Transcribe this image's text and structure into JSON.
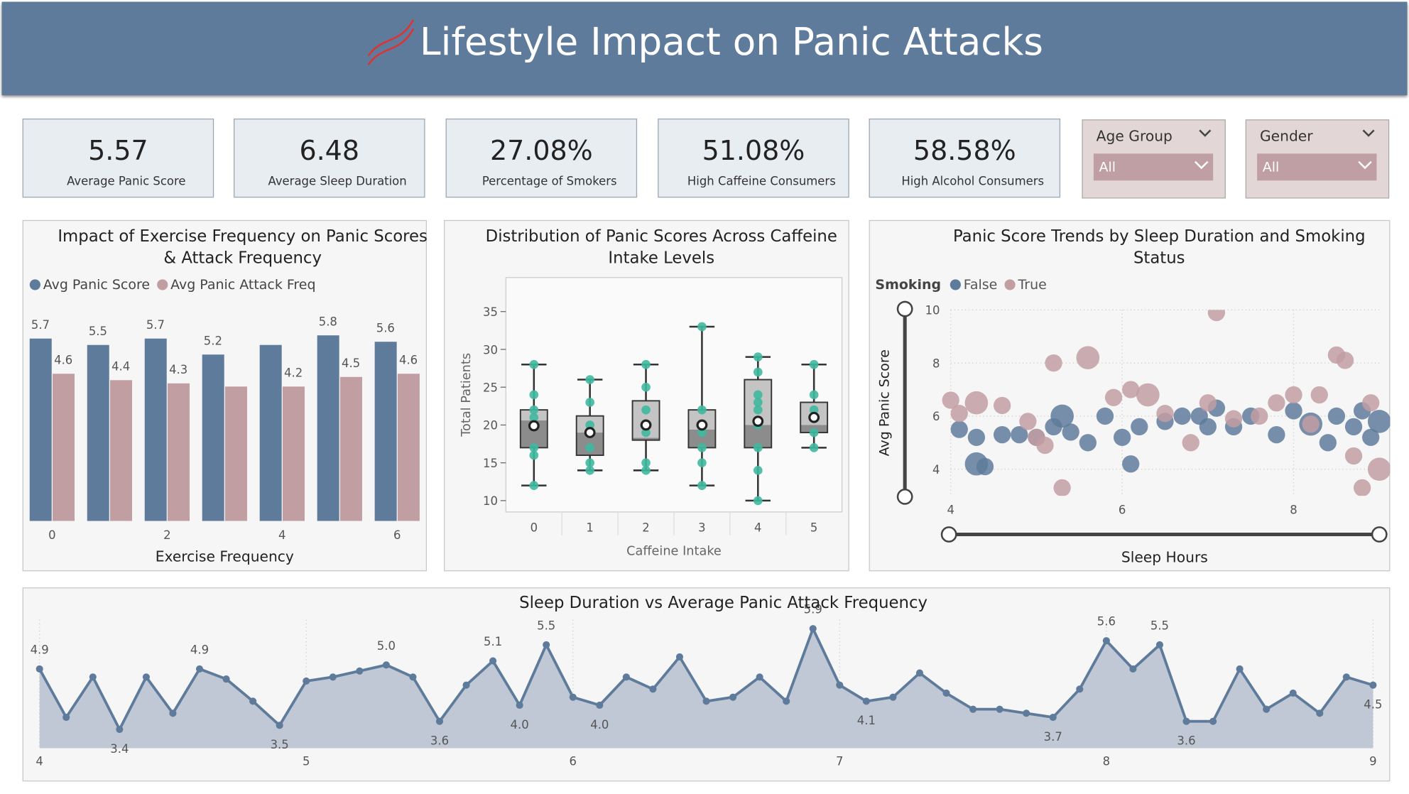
{
  "header": {
    "title": "Lifestyle Impact on Panic Attacks"
  },
  "kpis": [
    {
      "value": "5.57",
      "label": "Average Panic Score"
    },
    {
      "value": "6.48",
      "label": "Average Sleep Duration"
    },
    {
      "value": "27.08%",
      "label": "Percentage of Smokers"
    },
    {
      "value": "51.08%",
      "label": "High Caffeine Consumers"
    },
    {
      "value": "58.58%",
      "label": "High Alcohol Consumers"
    }
  ],
  "slicers": [
    {
      "label": "Age Group",
      "selection": "All"
    },
    {
      "label": "Gender",
      "selection": "All"
    }
  ],
  "chart_data": [
    {
      "type": "bar",
      "title": "Impact of Exercise Frequency on Panic Scores & Attack Frequency",
      "xlabel": "Exercise Frequency",
      "categories": [
        0,
        null,
        2,
        null,
        4,
        null,
        6
      ],
      "series": [
        {
          "name": "Avg Panic Score",
          "color": "#5f7b9b",
          "values": [
            5.7,
            5.5,
            5.7,
            5.2,
            5.5,
            5.8,
            5.6
          ],
          "value_labels": [
            "5.7",
            "5.5",
            "5.7",
            "5.2",
            null,
            "5.8",
            "5.6"
          ]
        },
        {
          "name": "Avg Panic Attack Freq",
          "color": "#c09ea2",
          "values": [
            4.6,
            4.4,
            4.3,
            4.2,
            4.2,
            4.5,
            4.6
          ],
          "value_labels": [
            "4.6",
            "4.4",
            "4.3",
            null,
            "4.2",
            "4.5",
            "4.6"
          ]
        }
      ],
      "ylim": [
        0,
        6.4
      ]
    },
    {
      "type": "box",
      "title": "Distribution of Panic Scores Across Caffeine Intake Levels",
      "xlabel": "Caffeine Intake",
      "ylabel": "Total Patients",
      "categories": [
        0,
        1,
        2,
        3,
        4,
        5
      ],
      "boxes": [
        {
          "min": 12,
          "q1": 17,
          "median": 20.6,
          "q3": 22,
          "max": 28,
          "mean": 19.9,
          "points": [
            28,
            24,
            22,
            21,
            17,
            16,
            12
          ]
        },
        {
          "min": 14,
          "q1": 16,
          "median": 19,
          "q3": 21.2,
          "max": 26,
          "mean": 19,
          "points": [
            26,
            23,
            20,
            19,
            17,
            15,
            14
          ]
        },
        {
          "min": 14,
          "q1": 18,
          "median": 18.3,
          "q3": 23.2,
          "max": 28,
          "mean": 20,
          "points": [
            28,
            25,
            22,
            20,
            19,
            15,
            14
          ]
        },
        {
          "min": 12,
          "q1": 17,
          "median": 19.4,
          "q3": 22,
          "max": 33,
          "mean": 20,
          "points": [
            33,
            22,
            20,
            19,
            17,
            15,
            12
          ]
        },
        {
          "min": 10,
          "q1": 17,
          "median": 20,
          "q3": 26,
          "max": 29,
          "mean": 20.5,
          "points": [
            29,
            27,
            24,
            23,
            22,
            20,
            17,
            14,
            10
          ]
        },
        {
          "min": 17,
          "q1": 19,
          "median": 20,
          "q3": 23,
          "max": 28,
          "mean": 21,
          "points": [
            28,
            24,
            22,
            21,
            19,
            17
          ]
        }
      ],
      "box_color": "#8c8c8c",
      "upper_color": "#c4c4c4",
      "point_color": "#3fb8a0",
      "ylim": [
        8.5,
        39.5
      ],
      "yticks": [
        10,
        15,
        20,
        25,
        30,
        35
      ]
    },
    {
      "type": "scatter",
      "title": "Panic Score Trends by Sleep Duration and Smoking Status",
      "legend_title": "Smoking",
      "xlabel": "Sleep Hours",
      "ylabel": "Avg Panic Score",
      "xlim": [
        4,
        9
      ],
      "xticks": [
        4,
        6,
        8
      ],
      "ylim": [
        3,
        10
      ],
      "yticks": [
        4,
        6,
        8,
        10
      ],
      "grid": true,
      "series": [
        {
          "name": "False",
          "color": "#5f7b9b",
          "x": [
            4.1,
            4.3,
            4.3,
            4.4,
            4.6,
            4.8,
            5.0,
            5.2,
            5.3,
            5.4,
            5.6,
            5.8,
            6.0,
            6.1,
            6.2,
            6.5,
            6.7,
            6.9,
            7.0,
            7.1,
            7.3,
            7.5,
            7.8,
            8.0,
            8.2,
            8.4,
            8.5,
            8.7,
            8.8,
            8.9,
            9.0
          ],
          "values": [
            5.5,
            5.2,
            4.2,
            4.1,
            5.3,
            5.3,
            5.2,
            5.6,
            6.0,
            5.4,
            5.0,
            6.0,
            5.2,
            4.2,
            5.6,
            5.8,
            6.0,
            6.0,
            5.6,
            6.3,
            5.6,
            6.0,
            5.3,
            6.2,
            5.7,
            5.0,
            6.0,
            5.6,
            6.2,
            5.2,
            5.8
          ],
          "sizes": [
            2,
            2,
            3,
            2,
            2,
            2,
            2,
            2,
            3,
            2,
            2,
            2,
            2,
            2,
            2,
            2,
            2,
            2,
            2,
            2,
            2,
            2,
            2,
            2,
            3,
            2,
            2,
            2,
            2,
            2,
            3
          ]
        },
        {
          "name": "True",
          "color": "#c29ea3",
          "x": [
            4.0,
            4.1,
            4.3,
            4.6,
            4.9,
            5.0,
            5.1,
            5.2,
            5.3,
            5.6,
            5.9,
            6.1,
            6.3,
            6.5,
            6.8,
            7.0,
            7.1,
            7.3,
            7.6,
            7.8,
            8.0,
            8.2,
            8.3,
            8.5,
            8.6,
            8.7,
            8.8,
            8.9,
            9.0
          ],
          "values": [
            6.6,
            6.1,
            6.5,
            6.4,
            5.8,
            5.2,
            4.9,
            8.0,
            3.3,
            8.2,
            6.7,
            7.0,
            6.8,
            6.1,
            5.0,
            6.5,
            9.9,
            5.9,
            6.0,
            6.5,
            6.8,
            5.7,
            6.8,
            8.3,
            8.1,
            4.5,
            3.3,
            6.5,
            4.0
          ],
          "sizes": [
            2,
            2,
            3,
            2,
            2,
            2,
            2,
            2,
            2,
            3,
            2,
            2,
            3,
            2,
            2,
            2,
            2,
            2,
            2,
            2,
            2,
            2,
            2,
            2,
            2,
            2,
            2,
            2,
            3
          ]
        }
      ]
    },
    {
      "type": "area",
      "title": "Sleep Duration vs Average Panic Attack Frequency",
      "color": "#5f7b9b",
      "fill": "#bfc8d4",
      "x": [
        4.0,
        4.1,
        4.2,
        4.3,
        4.4,
        4.5,
        4.6,
        4.7,
        4.8,
        4.9,
        5.0,
        5.1,
        5.2,
        5.3,
        5.4,
        5.5,
        5.6,
        5.7,
        5.8,
        5.9,
        6.0,
        6.1,
        6.2,
        6.3,
        6.4,
        6.5,
        6.6,
        6.7,
        6.8,
        6.9,
        7.0,
        7.1,
        7.2,
        7.3,
        7.4,
        7.5,
        7.6,
        7.7,
        7.8,
        7.9,
        8.0,
        8.1,
        8.2,
        8.3,
        8.4,
        8.5,
        8.6,
        8.7,
        8.8,
        8.9,
        9.0
      ],
      "values": [
        4.9,
        3.7,
        4.7,
        3.4,
        4.7,
        3.8,
        4.9,
        4.65,
        4.1,
        3.5,
        4.6,
        4.7,
        4.85,
        5.0,
        4.7,
        3.6,
        4.5,
        5.1,
        4.0,
        5.5,
        4.2,
        4.0,
        4.7,
        4.4,
        5.2,
        4.1,
        4.2,
        4.7,
        4.1,
        5.9,
        4.5,
        4.1,
        4.2,
        4.8,
        4.3,
        3.9,
        3.9,
        3.8,
        3.7,
        4.4,
        5.6,
        4.9,
        5.5,
        3.6,
        3.6,
        4.9,
        3.9,
        4.3,
        3.8,
        4.7,
        4.5
      ],
      "value_labels": [
        "4.9",
        null,
        null,
        "3.4",
        null,
        null,
        "4.9",
        null,
        null,
        "3.5",
        null,
        null,
        null,
        "5.0",
        null,
        "3.6",
        null,
        "5.1",
        "4.0",
        "5.5",
        null,
        "4.0",
        null,
        null,
        null,
        null,
        null,
        null,
        null,
        "5.9",
        null,
        "4.1",
        null,
        null,
        null,
        null,
        null,
        null,
        "3.7",
        null,
        "5.6",
        null,
        "5.5",
        "3.6",
        null,
        null,
        null,
        null,
        null,
        null,
        "4.5"
      ],
      "xlim": [
        4,
        9
      ],
      "xticks": [
        4,
        5,
        6,
        7,
        8,
        9
      ],
      "ylim": [
        3,
        6.3
      ]
    }
  ]
}
